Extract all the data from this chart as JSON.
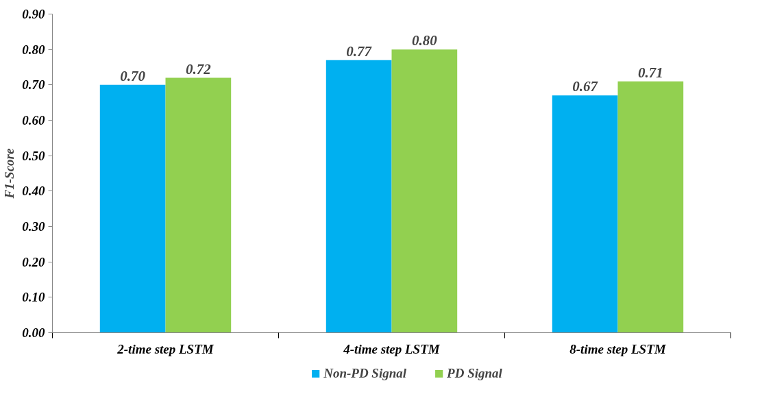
{
  "chart_data": {
    "type": "bar",
    "ylabel": "F1-Score",
    "categories": [
      "2-time step LSTM",
      "4-time step LSTM",
      "8-time step LSTM"
    ],
    "series": [
      {
        "name": "Non-PD Signal",
        "color": "#00b0f0",
        "values": [
          0.7,
          0.77,
          0.67
        ],
        "value_labels": [
          "0.70",
          "0.77",
          "0.67"
        ]
      },
      {
        "name": "PD Signal",
        "color": "#92d050",
        "values": [
          0.72,
          0.8,
          0.71
        ],
        "value_labels": [
          "0.72",
          "0.80",
          "0.71"
        ]
      }
    ],
    "ylim": [
      0,
      0.9
    ],
    "yticks": [
      {
        "value": 0,
        "label": "0.00"
      },
      {
        "value": 0.1,
        "label": "0.10"
      },
      {
        "value": 0.2,
        "label": "0.20"
      },
      {
        "value": 0.3,
        "label": "0.30"
      },
      {
        "value": 0.4,
        "label": "0.40"
      },
      {
        "value": 0.5,
        "label": "0.50"
      },
      {
        "value": 0.6,
        "label": "0.60"
      },
      {
        "value": 0.7,
        "label": "0.70"
      },
      {
        "value": 0.8,
        "label": "0.80"
      },
      {
        "value": 0.9,
        "label": "0.90"
      }
    ],
    "grid": false,
    "legend": "bottom"
  }
}
